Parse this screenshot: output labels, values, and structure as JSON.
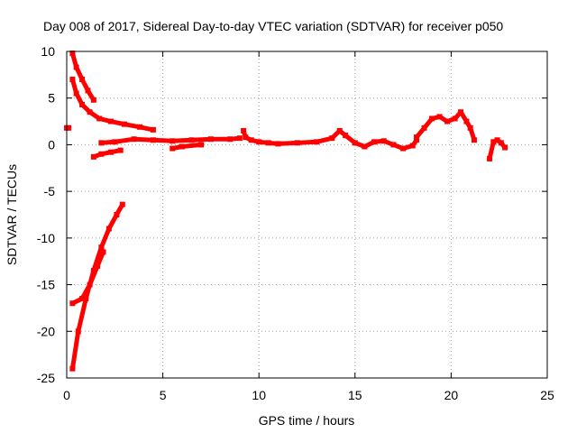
{
  "chart_data": {
    "type": "scatter",
    "title": "Day 008 of 2017, Sidereal Day-to-day VTEC variation (SDTVAR) for receiver p050",
    "xlabel": "GPS time / hours",
    "ylabel": "SDTVAR / TECUs",
    "xlim": [
      0,
      25
    ],
    "ylim": [
      -25,
      10
    ],
    "xticks": [
      0,
      5,
      10,
      15,
      20,
      25
    ],
    "yticks": [
      10,
      5,
      0,
      -5,
      -10,
      -15,
      -20,
      -25
    ],
    "grid": true,
    "color": "#ff0000",
    "series": [
      {
        "name": "SDTVAR",
        "segments": [
          {
            "x": [
              0.0,
              0.1
            ],
            "y": [
              1.8,
              1.8
            ]
          },
          {
            "x": [
              0.3,
              0.5,
              0.8,
              1.1,
              1.4
            ],
            "y": [
              9.8,
              8.3,
              7.0,
              5.8,
              4.8
            ]
          },
          {
            "x": [
              0.3,
              0.5,
              0.8,
              1.2,
              1.7,
              2.3,
              3.0,
              3.8,
              4.5
            ],
            "y": [
              7.0,
              5.5,
              4.3,
              3.5,
              2.8,
              2.5,
              2.2,
              1.9,
              1.6
            ]
          },
          {
            "x": [
              1.4,
              1.8,
              2.3,
              2.8
            ],
            "y": [
              -1.3,
              -1.0,
              -0.8,
              -0.6
            ]
          },
          {
            "x": [
              0.3,
              0.6,
              1.0,
              1.4,
              1.8,
              2.2,
              2.6,
              2.9
            ],
            "y": [
              -24.0,
              -20.0,
              -16.5,
              -13.5,
              -11.0,
              -9.0,
              -7.5,
              -6.4
            ]
          },
          {
            "x": [
              0.3,
              0.8,
              1.2,
              1.6,
              1.9
            ],
            "y": [
              -17.0,
              -16.5,
              -15.0,
              -13.0,
              -11.5
            ]
          },
          {
            "x": [
              1.8,
              2.5,
              3.5,
              4.5,
              5.5,
              6.5,
              7.5,
              8.5,
              9.0
            ],
            "y": [
              0.2,
              0.3,
              0.6,
              0.5,
              0.4,
              0.5,
              0.6,
              0.6,
              0.7
            ]
          },
          {
            "x": [
              5.5,
              6.0,
              7.0
            ],
            "y": [
              -0.4,
              -0.2,
              0.0
            ]
          },
          {
            "x": [
              9.2,
              9.3,
              9.6,
              10.0,
              10.5,
              11.0,
              12.0,
              13.0,
              13.8,
              14.2,
              14.5,
              15.0,
              15.5,
              16.0,
              16.5,
              17.0,
              17.5,
              18.0,
              18.2
            ],
            "y": [
              1.5,
              0.8,
              0.5,
              0.3,
              0.2,
              0.1,
              0.2,
              0.3,
              0.7,
              1.5,
              1.0,
              0.2,
              -0.2,
              0.3,
              0.4,
              0.0,
              -0.4,
              -0.1,
              0.5
            ]
          },
          {
            "x": [
              18.2,
              18.6,
              19.0,
              19.4,
              19.8,
              20.2,
              20.5,
              20.8,
              21.0,
              21.2
            ],
            "y": [
              0.8,
              1.8,
              2.8,
              3.0,
              2.5,
              2.8,
              3.5,
              2.5,
              1.8,
              0.5
            ]
          },
          {
            "x": [
              22.0,
              22.2,
              22.4,
              22.6,
              22.8
            ],
            "y": [
              -1.5,
              0.3,
              0.5,
              0.2,
              -0.3
            ]
          }
        ]
      }
    ]
  }
}
